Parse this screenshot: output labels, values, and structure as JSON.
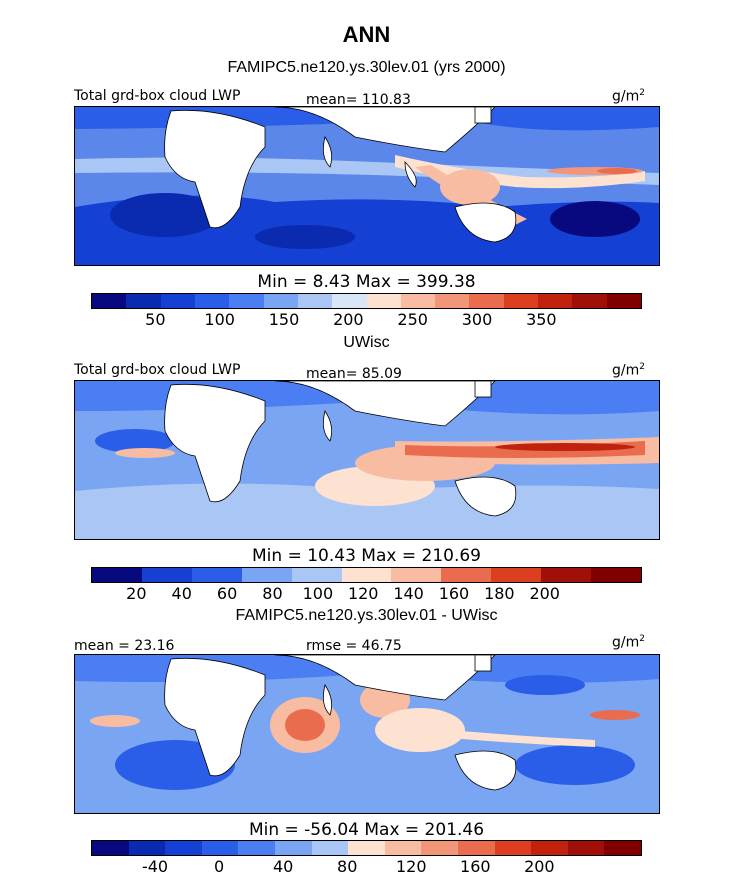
{
  "title": "ANN",
  "panels": [
    {
      "subtitle": "FAMIPC5.ne120.ys.30lev.01 (yrs 2000)",
      "left_label": "Total grd-box cloud LWP",
      "center_label": "mean=  110.83",
      "units": "g/m",
      "units_sup": "2",
      "stats": "Min =   8.43 Max = 399.38",
      "colorbar": {
        "colors": [
          "#08087f",
          "#0a2aaf",
          "#1440d4",
          "#2a5ee8",
          "#4a7ef2",
          "#7aa5f2",
          "#a9c6f4",
          "#d8e6f8",
          "#fde2d2",
          "#f8bca2",
          "#f2967a",
          "#ea6c4e",
          "#dc3f20",
          "#c0220e",
          "#a01008",
          "#800000"
        ],
        "tick_values": [
          "50",
          "100",
          "150",
          "200",
          "250",
          "300",
          "350"
        ]
      }
    },
    {
      "subtitle": "UWisc",
      "left_label": "Total grd-box cloud LWP",
      "center_label": "mean=  85.09",
      "units": "g/m",
      "units_sup": "2",
      "stats": "Min =  10.43 Max = 210.69",
      "colorbar": {
        "colors": [
          "#08087f",
          "#1440d4",
          "#2a5ee8",
          "#7aa5f2",
          "#a9c6f4",
          "#fde2d2",
          "#f8bca2",
          "#ea6c4e",
          "#dc3f20",
          "#a01008",
          "#800000"
        ],
        "tick_values": [
          "20",
          "40",
          "60",
          "80",
          "100",
          "120",
          "140",
          "160",
          "180",
          "200"
        ]
      }
    },
    {
      "subtitle": "FAMIPC5.ne120.ys.30lev.01 - UWisc",
      "left_label": "mean =  23.16",
      "center_label": "rmse =  46.75",
      "units": "g/m",
      "units_sup": "2",
      "stats": "Min = -56.04 Max = 201.46",
      "colorbar": {
        "colors": [
          "#08087f",
          "#0a2aaf",
          "#1440d4",
          "#2a5ee8",
          "#4a7ef2",
          "#7aa5f2",
          "#a9c6f4",
          "#fde2d2",
          "#f8bca2",
          "#f2967a",
          "#ea6c4e",
          "#dc3f20",
          "#c0220e",
          "#a01008",
          "#800000"
        ],
        "tick_values": [
          "-40",
          "0",
          "40",
          "80",
          "120",
          "160",
          "200"
        ]
      }
    }
  ]
}
